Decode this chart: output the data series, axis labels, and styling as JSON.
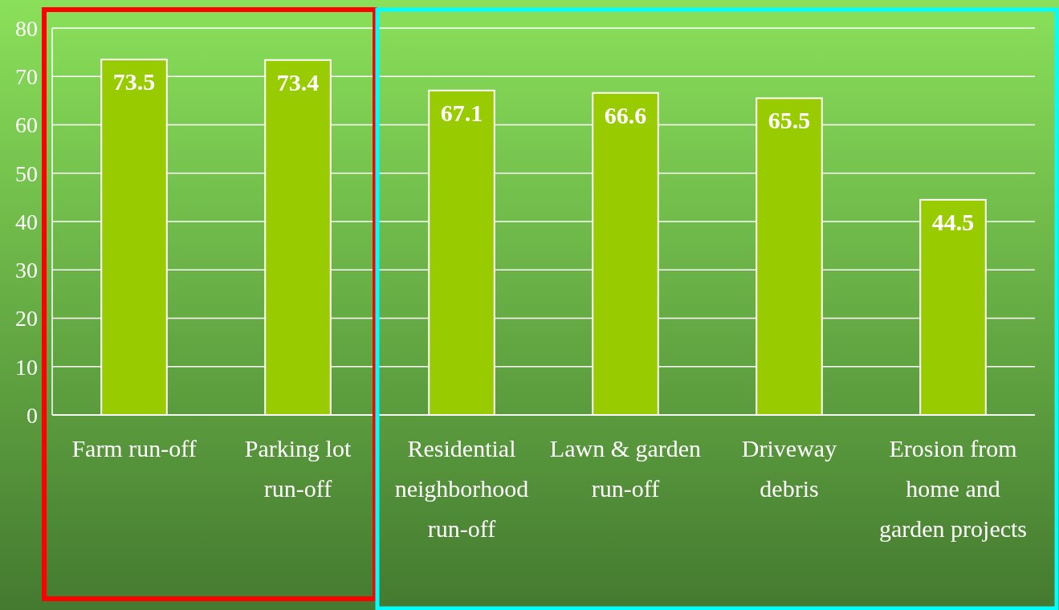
{
  "chart_data": {
    "type": "bar",
    "categories": [
      "Farm run-off",
      "Parking lot run-off",
      "Residential neighborhood run-off",
      "Lawn & garden run-off",
      "Driveway debris",
      "Erosion from home and garden projects"
    ],
    "values": [
      73.5,
      73.4,
      67.1,
      66.6,
      65.5,
      44.5
    ],
    "color": "#99cc00",
    "ylim": [
      0,
      80
    ],
    "yticks": [
      0,
      10,
      20,
      30,
      40,
      50,
      60,
      70,
      80
    ],
    "grid": "y",
    "data_labels": true
  }
}
